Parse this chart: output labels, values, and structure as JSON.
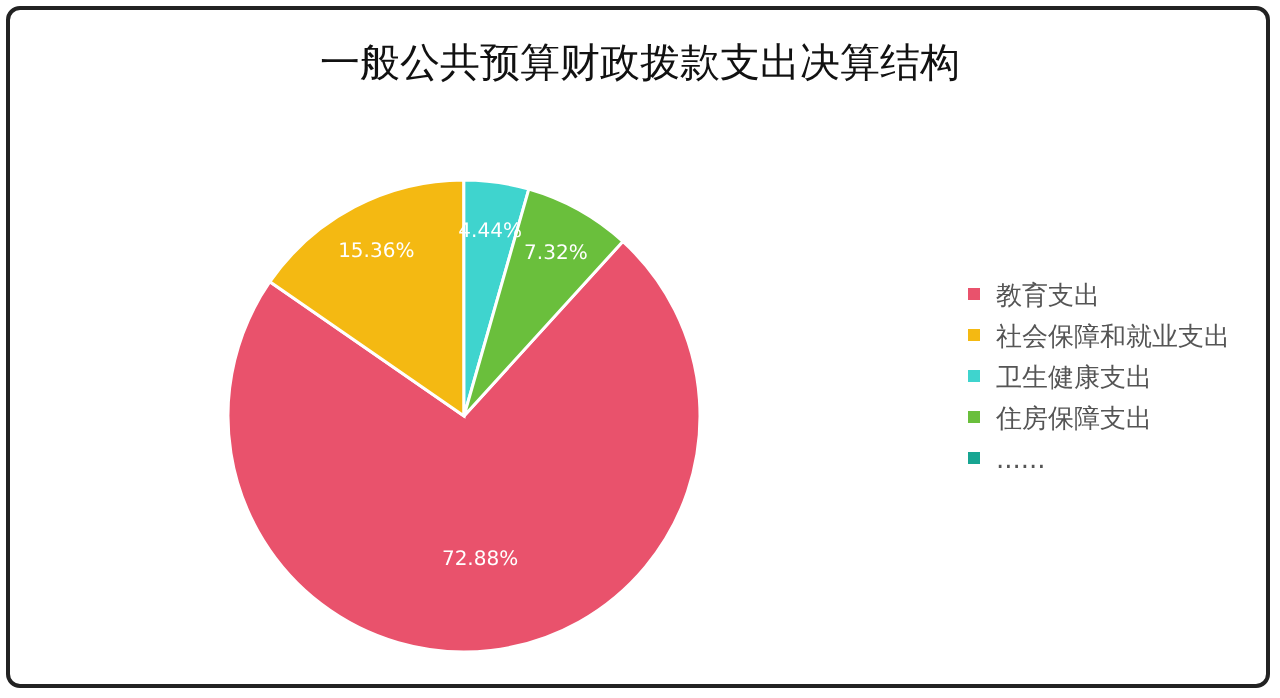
{
  "chart_data": {
    "type": "pie",
    "title": "一般公共预算财政拨款支出决算结构",
    "categories": [
      "教育支出",
      "社会保障和就业支出",
      "卫生健康支出",
      "住房保障支出",
      "......"
    ],
    "values": [
      72.88,
      15.36,
      4.44,
      7.32,
      null
    ],
    "value_labels": [
      "72.88%",
      "15.36%",
      "4.44%",
      "7.32%",
      null
    ],
    "colors": [
      "#e9526c",
      "#f4b912",
      "#3fd4ce",
      "#6abf3c",
      "#17a592"
    ],
    "legend": "right"
  }
}
